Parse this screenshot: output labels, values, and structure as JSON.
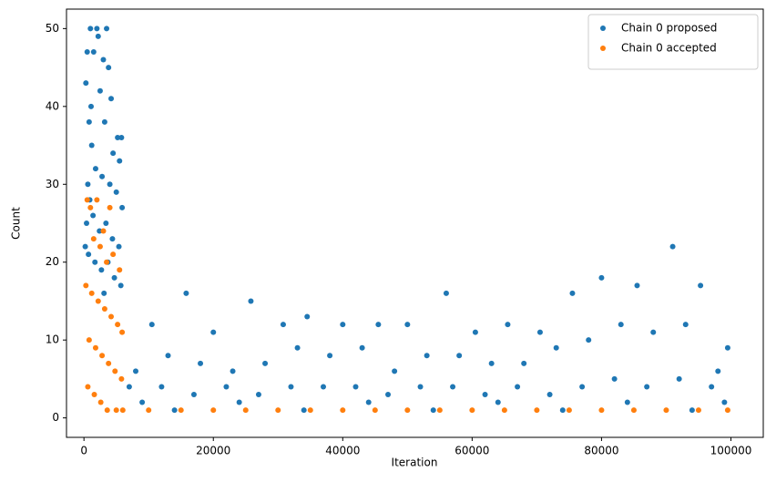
{
  "chart_data": {
    "type": "scatter",
    "xlabel": "Iteration",
    "ylabel": "Count",
    "xlim": [
      -2700,
      105000
    ],
    "ylim": [
      -2.5,
      52.5
    ],
    "xticks": [
      0,
      20000,
      40000,
      60000,
      80000,
      100000
    ],
    "yticks": [
      0,
      10,
      20,
      30,
      40,
      50
    ],
    "legend": "upper right",
    "series": [
      {
        "name": "Chain 0 proposed",
        "color": "#1f77b4",
        "x": [
          500,
          1000,
          1500,
          2000,
          2200,
          3000,
          3500,
          3800,
          4200,
          5800,
          300,
          800,
          1200,
          2500,
          3200,
          4500,
          5500,
          600,
          1800,
          2800,
          4000,
          5000,
          5900,
          400,
          1400,
          2400,
          3400,
          4400,
          5400,
          700,
          1700,
          2700,
          3700,
          4700,
          5700,
          200,
          5200,
          1100,
          900,
          3100,
          10500,
          15800,
          20000,
          25800,
          30800,
          34500,
          40000,
          45500,
          50000,
          56000,
          60500,
          65500,
          70500,
          75500,
          80000,
          85500,
          91000,
          95300,
          99500,
          8000,
          13000,
          18000,
          23000,
          28000,
          33000,
          38000,
          43000,
          48000,
          53000,
          58000,
          63000,
          68000,
          73000,
          78000,
          83000,
          88000,
          93000,
          98000,
          7000,
          12000,
          17000,
          22000,
          27000,
          32000,
          37000,
          42000,
          47000,
          52000,
          57000,
          62000,
          67000,
          72000,
          77000,
          82000,
          87000,
          92000,
          97000,
          9000,
          24000,
          44000,
          64000,
          84000,
          99000,
          14000,
          34000,
          54000,
          74000,
          94000
        ],
        "values": [
          47,
          50,
          47,
          50,
          49,
          46,
          50,
          45,
          41,
          36,
          43,
          38,
          35,
          42,
          38,
          34,
          33,
          30,
          32,
          31,
          30,
          29,
          27,
          25,
          26,
          24,
          25,
          23,
          22,
          21,
          20,
          19,
          20,
          18,
          17,
          22,
          36,
          40,
          28,
          16,
          12,
          16,
          11,
          15,
          12,
          13,
          12,
          12,
          12,
          16,
          11,
          12,
          11,
          16,
          18,
          17,
          22,
          17,
          9,
          6,
          8,
          7,
          6,
          7,
          9,
          8,
          9,
          6,
          8,
          8,
          7,
          7,
          9,
          10,
          12,
          11,
          12,
          6,
          4,
          4,
          3,
          4,
          3,
          4,
          4,
          4,
          3,
          4,
          4,
          3,
          4,
          3,
          4,
          5,
          4,
          5,
          4,
          2,
          2,
          2,
          2,
          2,
          2,
          1,
          1,
          1,
          1,
          1
        ]
      },
      {
        "name": "Chain 0 accepted",
        "color": "#ff7f0e",
        "x": [
          500,
          1000,
          2000,
          3000,
          4000,
          1500,
          2500,
          3500,
          4500,
          5500,
          300,
          1200,
          2200,
          3200,
          4200,
          5200,
          5900,
          800,
          1800,
          2800,
          3800,
          4800,
          5800,
          600,
          1600,
          2600,
          3600,
          5000,
          6000,
          10000,
          15000,
          20000,
          25000,
          30000,
          35000,
          40000,
          45000,
          50000,
          55000,
          60000,
          65000,
          70000,
          75000,
          80000,
          85000,
          90000,
          95000,
          99500
        ],
        "values": [
          28,
          27,
          28,
          24,
          27,
          23,
          22,
          20,
          21,
          19,
          17,
          16,
          15,
          14,
          13,
          12,
          11,
          10,
          9,
          8,
          7,
          6,
          5,
          4,
          3,
          2,
          1,
          1,
          1,
          1,
          1,
          1,
          1,
          1,
          1,
          1,
          1,
          1,
          1,
          1,
          1,
          1,
          1,
          1,
          1,
          1,
          1,
          1
        ]
      }
    ]
  }
}
